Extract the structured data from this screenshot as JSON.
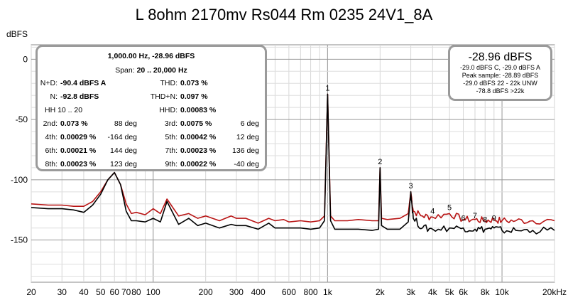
{
  "title": "L 8ohm 2170mv Rs044 Rm 0235 24V1_8A",
  "chart_data": {
    "type": "line",
    "title": "L 8ohm 2170mv Rs044 Rm 0235 24V1_8A",
    "ylabel": "dBFS",
    "xlabel": "",
    "x_scale": "log",
    "xlim": [
      20,
      20000
    ],
    "ylim": [
      -185,
      12
    ],
    "grid": true,
    "x_ticks": [
      {
        "v": 20,
        "label": "20"
      },
      {
        "v": 30,
        "label": "30"
      },
      {
        "v": 40,
        "label": "40"
      },
      {
        "v": 50,
        "label": "50"
      },
      {
        "v": 60,
        "label": "60"
      },
      {
        "v": 70,
        "label": "70"
      },
      {
        "v": 80,
        "label": "80"
      },
      {
        "v": 100,
        "label": "100"
      },
      {
        "v": 200,
        "label": "200"
      },
      {
        "v": 300,
        "label": "300"
      },
      {
        "v": 400,
        "label": "400"
      },
      {
        "v": 600,
        "label": "600"
      },
      {
        "v": 800,
        "label": "800"
      },
      {
        "v": 1000,
        "label": "1k"
      },
      {
        "v": 2000,
        "label": "2k"
      },
      {
        "v": 3000,
        "label": "3k"
      },
      {
        "v": 4000,
        "label": "4k"
      },
      {
        "v": 5000,
        "label": "5k"
      },
      {
        "v": 6000,
        "label": "6k"
      },
      {
        "v": 8000,
        "label": "8k"
      },
      {
        "v": 10000,
        "label": "10k"
      },
      {
        "v": 20000,
        "label": "20kHz"
      }
    ],
    "y_ticks": [
      {
        "v": 0,
        "label": "0"
      },
      {
        "v": -50,
        "label": "-50"
      },
      {
        "v": -100,
        "label": "-100"
      },
      {
        "v": -150,
        "label": "-150"
      }
    ],
    "harmonic_markers": [
      {
        "label": "1",
        "x": 1000,
        "y": -28.96
      },
      {
        "label": "2",
        "x": 2000,
        "y": -90
      },
      {
        "label": "3",
        "x": 3000,
        "y": -110
      },
      {
        "label": "4",
        "x": 4000,
        "y": -131
      },
      {
        "label": "5",
        "x": 5000,
        "y": -128
      },
      {
        "label": "6",
        "x": 6000,
        "y": -137
      },
      {
        "label": "7",
        "x": 7000,
        "y": -135
      },
      {
        "label": "8",
        "x": 8000,
        "y": -138
      },
      {
        "label": "9",
        "x": 9000,
        "y": -137
      }
    ],
    "series": [
      {
        "name": "",
        "color": "#b81414",
        "x": [
          20,
          25,
          30,
          35,
          40,
          45,
          50,
          55,
          60,
          65,
          70,
          75,
          80,
          90,
          100,
          110,
          120,
          140,
          160,
          180,
          200,
          240,
          280,
          300,
          340,
          400,
          460,
          500,
          560,
          600,
          700,
          800,
          900,
          960,
          1000,
          1040,
          1100,
          1300,
          1500,
          1800,
          1960,
          2000,
          2040,
          2200,
          2600,
          2900,
          3000,
          3100,
          3500,
          4000,
          5000,
          6000,
          7000,
          8000,
          9000,
          10000,
          12000,
          15000,
          20000
        ],
        "y": [
          -120,
          -121,
          -121,
          -122,
          -122,
          -118,
          -110,
          -100,
          -94,
          -104,
          -120,
          -128,
          -127,
          -129,
          -124,
          -128,
          -116,
          -130,
          -128,
          -132,
          -130,
          -134,
          -130,
          -132,
          -132,
          -136,
          -132,
          -134,
          -133,
          -135,
          -134,
          -135,
          -134,
          -130,
          -28.96,
          -130,
          -134,
          -134,
          -133,
          -134,
          -134,
          -90,
          -132,
          -133,
          -132,
          -128,
          -110,
          -126,
          -130,
          -131,
          -128,
          -133,
          -133,
          -134,
          -133,
          -134,
          -134,
          -134,
          -134
        ]
      },
      {
        "name": "",
        "color": "#000000",
        "x": [
          20,
          25,
          30,
          35,
          40,
          45,
          50,
          55,
          60,
          65,
          70,
          75,
          80,
          90,
          100,
          110,
          120,
          140,
          160,
          180,
          200,
          240,
          280,
          300,
          340,
          400,
          460,
          500,
          560,
          600,
          700,
          800,
          900,
          960,
          1000,
          1040,
          1100,
          1300,
          1500,
          1800,
          1960,
          2000,
          2040,
          2200,
          2600,
          2900,
          3000,
          3100,
          3500,
          4000,
          5000,
          6000,
          7000,
          8000,
          9000,
          10000,
          12000,
          15000,
          20000
        ],
        "y": [
          -123,
          -124,
          -124,
          -125,
          -127,
          -121,
          -112,
          -100,
          -94,
          -104,
          -126,
          -134,
          -134,
          -135,
          -132,
          -135,
          -118,
          -137,
          -132,
          -138,
          -136,
          -140,
          -137,
          -138,
          -138,
          -141,
          -136,
          -140,
          -140,
          -140,
          -140,
          -141,
          -140,
          -134,
          -28.96,
          -134,
          -141,
          -141,
          -141,
          -142,
          -141,
          -90,
          -138,
          -141,
          -141,
          -135,
          -110,
          -132,
          -140,
          -141,
          -140,
          -140,
          -141,
          -141,
          -140,
          -142,
          -142,
          -142,
          -142
        ]
      }
    ]
  },
  "distortion_panel": {
    "header1": "1,000.00 Hz, -28.96 dBFS",
    "span_label": "Span: ",
    "span_value": "20 .. 20,000 Hz",
    "nd_label": "N+D:",
    "nd_value": "-90.4 dBFS A",
    "n_label": "N:",
    "n_value": "-92.8 dBFS",
    "thd_label": "THD:",
    "thd_value": "0.073 %",
    "thdn_label": "THD+N:",
    "thdn_value": "0.097 %",
    "hh_label": "HH 10 .. 20",
    "hhd_label": "HHD:",
    "hhd_value": "0.00083 %",
    "harmonics": [
      {
        "label": "2nd:",
        "value": "0.073 %",
        "phase": "88 deg"
      },
      {
        "label": "3rd:",
        "value": "0.0075 %",
        "phase": "6 deg"
      },
      {
        "label": "4th:",
        "value": "0.00029 %",
        "phase": "-164 deg"
      },
      {
        "label": "5th:",
        "value": "0.00042 %",
        "phase": "12 deg"
      },
      {
        "label": "6th:",
        "value": "0.00021 %",
        "phase": "144 deg"
      },
      {
        "label": "7th:",
        "value": "0.00023 %",
        "phase": "136 deg"
      },
      {
        "label": "8th:",
        "value": "0.00023 %",
        "phase": "123 deg"
      },
      {
        "label": "9th:",
        "value": "0.00022 %",
        "phase": "-40 deg"
      }
    ]
  },
  "level_panel": {
    "main": "-28.96 dBFS",
    "line1": "-29.0 dBFS C, -29.0 dBFS A",
    "line2": "Peak sample: -28.89 dBFS",
    "line3": "-29.0 dBFS 22 - 22k UNW",
    "line4": "-78.8 dBFS >22k"
  }
}
